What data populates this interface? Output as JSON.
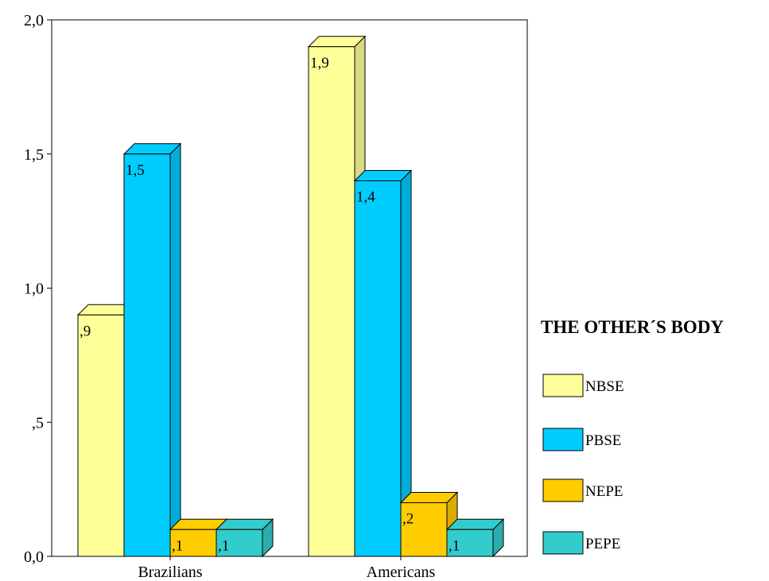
{
  "chart_data": {
    "type": "bar",
    "categories": [
      "Brazilians",
      "Americans"
    ],
    "series": [
      {
        "name": "NBSE",
        "values": [
          0.9,
          1.9
        ],
        "labels": [
          ",9",
          "1,9"
        ],
        "color": "#ffff99"
      },
      {
        "name": "PBSE",
        "values": [
          1.5,
          1.4
        ],
        "labels": [
          "1,5",
          "1,4"
        ],
        "color": "#00ccff"
      },
      {
        "name": "NEPE",
        "values": [
          0.1,
          0.2
        ],
        "labels": [
          ",1",
          ",2"
        ],
        "color": "#ffcc00"
      },
      {
        "name": "PEPE",
        "values": [
          0.1,
          0.1
        ],
        "labels": [
          ",1",
          ",1"
        ],
        "color": "#33cccc"
      }
    ],
    "ylim": [
      0,
      2.0
    ],
    "yticks": [
      0,
      0.5,
      1.0,
      1.5,
      2.0
    ],
    "ytick_labels": [
      "0,0",
      ",5",
      "1,0",
      "1,5",
      "2,0"
    ],
    "legend_title": "THE OTHER´S BODY",
    "legend_position": "right",
    "grid": false,
    "title": "",
    "xlabel": "",
    "ylabel": ""
  }
}
